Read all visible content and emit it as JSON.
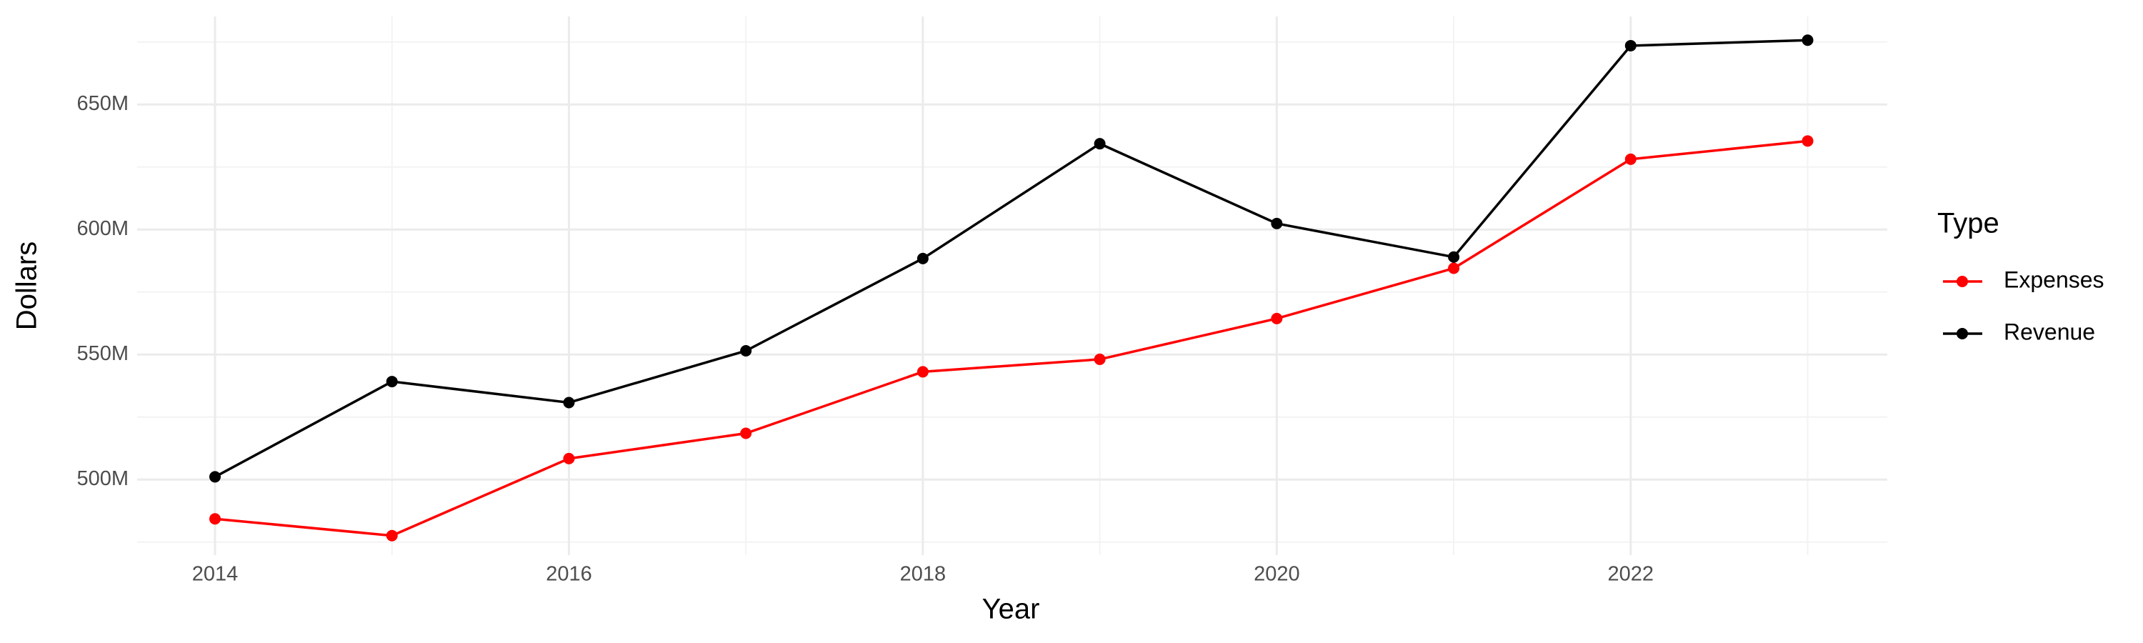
{
  "chart_data": {
    "type": "line",
    "x_label": "Year",
    "y_label": "Dollars",
    "legend_title": "Type",
    "x": [
      2014,
      2015,
      2016,
      2017,
      2018,
      2019,
      2020,
      2021,
      2022,
      2023
    ],
    "series": [
      {
        "name": "Expenses",
        "color": "#ff0000",
        "values": [
          484300000,
          477600000,
          508400000,
          518500000,
          543100000,
          548100000,
          564400000,
          584500000,
          628100000,
          635400000
        ]
      },
      {
        "name": "Revenue",
        "color": "#000000",
        "values": [
          501100000,
          539200000,
          530800000,
          551500000,
          588400000,
          634300000,
          602400000,
          589000000,
          673500000,
          675700000
        ]
      }
    ],
    "xlim": [
      2013.56,
      2023.45
    ],
    "xticks": [
      2014,
      2016,
      2018,
      2020,
      2022
    ],
    "xminorticks": [
      2015,
      2017,
      2019,
      2021,
      2023
    ],
    "ylim": [
      469800000,
      685200000
    ],
    "yticks": [
      {
        "value": 500000000,
        "label": "500M"
      },
      {
        "value": 550000000,
        "label": "550M"
      },
      {
        "value": 600000000,
        "label": "600M"
      },
      {
        "value": 650000000,
        "label": "650M"
      }
    ],
    "yminorticks": [
      475000000,
      525000000,
      575000000,
      625000000,
      675000000
    ],
    "grid": true,
    "legend": "right"
  }
}
